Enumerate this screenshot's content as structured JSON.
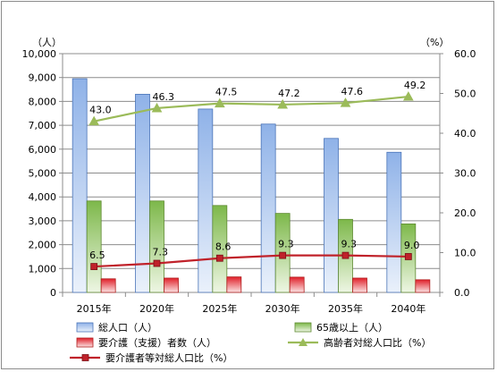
{
  "chart_data": {
    "type": "bar",
    "categories": [
      "2015年",
      "2020年",
      "2025年",
      "2030年",
      "2035年",
      "2040年"
    ],
    "y_left": {
      "unit": "（人）",
      "min": 0,
      "max": 10000,
      "step": 1000
    },
    "y_right": {
      "unit": "（%）",
      "min": 0,
      "max": 60,
      "step": 10
    },
    "series": [
      {
        "name": "総人口（人）",
        "kind": "bar",
        "axis": "left",
        "color": "#6f97d6",
        "values": [
          8950,
          8300,
          7680,
          7050,
          6450,
          5870
        ]
      },
      {
        "name": "65歳以上（人）",
        "kind": "bar",
        "axis": "left",
        "color": "#8cc152",
        "values": [
          3830,
          3830,
          3640,
          3310,
          3060,
          2870
        ]
      },
      {
        "name": "要介護（支援）者数（人）",
        "kind": "bar",
        "axis": "left",
        "color": "#e02a2a",
        "values": [
          570,
          600,
          650,
          640,
          600,
          530
        ]
      },
      {
        "name": "高齢者対総人口比（%）",
        "kind": "line",
        "axis": "right",
        "color": "#9bbb59",
        "marker": "triangle",
        "values": [
          43.0,
          46.3,
          47.5,
          47.2,
          47.6,
          49.2
        ],
        "labels": [
          "43.0",
          "46.3",
          "47.5",
          "47.2",
          "47.6",
          "49.2"
        ]
      },
      {
        "name": "要介護者等対総人口比（%）",
        "kind": "line",
        "axis": "right",
        "color": "#c0222a",
        "marker": "square",
        "values": [
          6.5,
          7.3,
          8.6,
          9.3,
          9.3,
          9.0
        ],
        "labels": [
          "6.5",
          "7.3",
          "8.6",
          "9.3",
          "9.3",
          "9.0"
        ]
      }
    ],
    "grid": true,
    "legend_position": "bottom"
  }
}
